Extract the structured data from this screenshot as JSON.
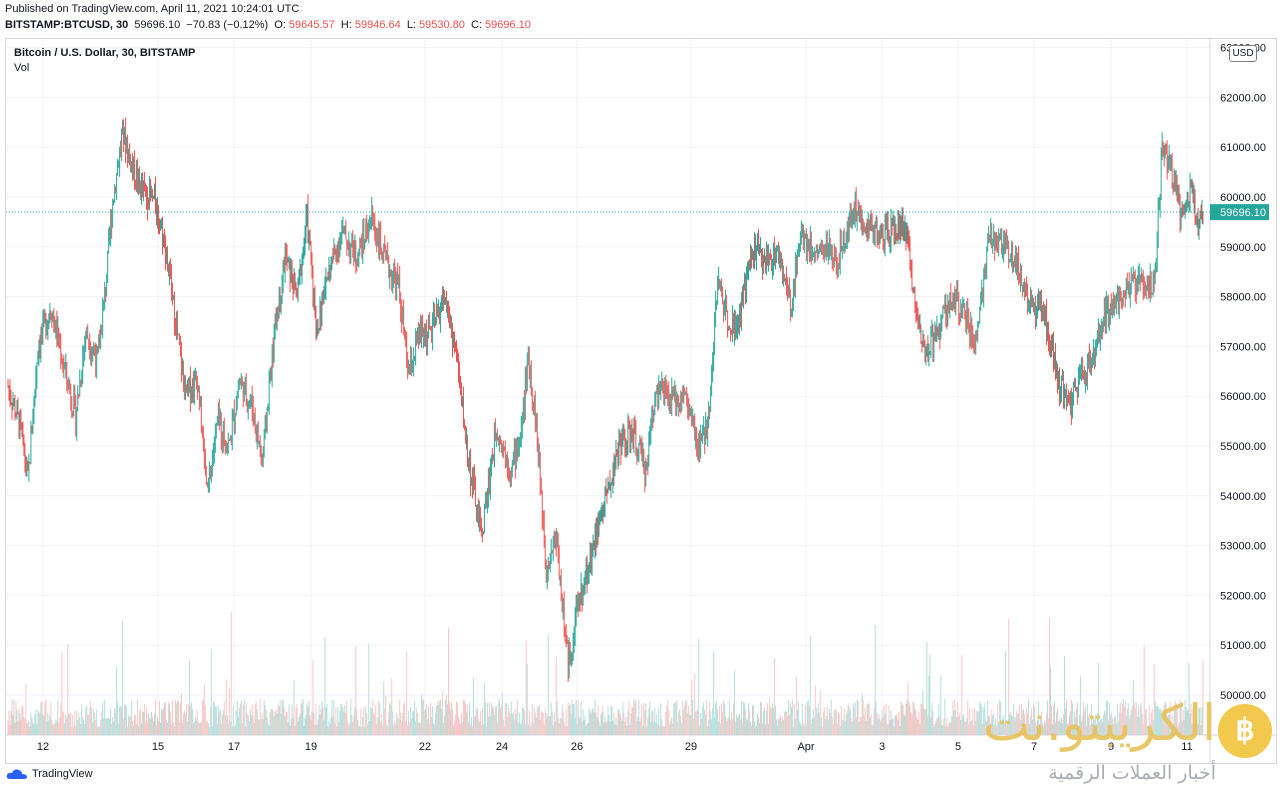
{
  "header": {
    "published": "Published on TradingView.com, April 11, 2021 10:24:01 UTC",
    "symbol": "BITSTAMP:BTCUSD, 30",
    "last": "59696.10",
    "change": "−70.83 (−0.12%)",
    "o_label": "O:",
    "o_value": "59645.57",
    "h_label": "H:",
    "h_value": "59946.64",
    "l_label": "L:",
    "l_value": "59530.80",
    "c_label": "C:",
    "c_value": "59696.10"
  },
  "legend": {
    "title": "Bitcoin / U.S. Dollar, 30, BITSTAMP",
    "vol": "Vol"
  },
  "currency_badge": "USD",
  "footer": {
    "brand": "TradingView"
  },
  "watermark": {
    "name": "الكريبتو.نت",
    "tagline": "أخبار العملات الرقمية",
    "coin": "฿"
  },
  "colors": {
    "up": "#26a69a",
    "down": "#ef5350",
    "grid": "#f0f3fa",
    "last_price_bg": "#26a69a"
  },
  "chart_data": {
    "type": "candlestick",
    "ylim": [
      50000,
      63000
    ],
    "y_ticks": [
      50000,
      51000,
      52000,
      53000,
      54000,
      55000,
      56000,
      57000,
      58000,
      59000,
      60000,
      61000,
      62000,
      63000
    ],
    "x_ticks": [
      "12",
      "15",
      "17",
      "19",
      "22",
      "24",
      "26",
      "29",
      "Apr",
      "3",
      "5",
      "7",
      "9",
      "11"
    ],
    "last_price": 59696.1,
    "last_price_label": "59696.10",
    "grid": true,
    "close_path": [
      [
        0,
        56200
      ],
      [
        12,
        55400
      ],
      [
        20,
        54300
      ],
      [
        30,
        57000
      ],
      [
        43,
        57800
      ],
      [
        55,
        56700
      ],
      [
        68,
        55600
      ],
      [
        78,
        57300
      ],
      [
        90,
        56700
      ],
      [
        98,
        58200
      ],
      [
        105,
        59900
      ],
      [
        115,
        61300
      ],
      [
        125,
        60600
      ],
      [
        135,
        60100
      ],
      [
        148,
        59900
      ],
      [
        158,
        59000
      ],
      [
        168,
        57500
      ],
      [
        178,
        56000
      ],
      [
        190,
        56400
      ],
      [
        200,
        54000
      ],
      [
        210,
        55500
      ],
      [
        222,
        55000
      ],
      [
        232,
        56300
      ],
      [
        245,
        55800
      ],
      [
        255,
        54700
      ],
      [
        268,
        57400
      ],
      [
        278,
        58800
      ],
      [
        290,
        58000
      ],
      [
        300,
        59600
      ],
      [
        310,
        57300
      ],
      [
        320,
        58400
      ],
      [
        335,
        59300
      ],
      [
        350,
        58800
      ],
      [
        365,
        59600
      ],
      [
        378,
        58700
      ],
      [
        392,
        58200
      ],
      [
        402,
        56400
      ],
      [
        412,
        57200
      ],
      [
        425,
        57300
      ],
      [
        438,
        58000
      ],
      [
        450,
        56800
      ],
      [
        462,
        54700
      ],
      [
        475,
        53200
      ],
      [
        490,
        55400
      ],
      [
        505,
        54500
      ],
      [
        515,
        55300
      ],
      [
        522,
        56800
      ],
      [
        530,
        55400
      ],
      [
        540,
        52600
      ],
      [
        550,
        53200
      ],
      [
        562,
        50600
      ],
      [
        572,
        51800
      ],
      [
        585,
        52800
      ],
      [
        600,
        54000
      ],
      [
        615,
        55100
      ],
      [
        628,
        55200
      ],
      [
        640,
        54500
      ],
      [
        650,
        56200
      ],
      [
        665,
        55900
      ],
      [
        680,
        56000
      ],
      [
        692,
        54900
      ],
      [
        702,
        55400
      ],
      [
        712,
        58300
      ],
      [
        722,
        57600
      ],
      [
        732,
        57400
      ],
      [
        748,
        59000
      ],
      [
        760,
        58700
      ],
      [
        772,
        58900
      ],
      [
        785,
        57800
      ],
      [
        795,
        59300
      ],
      [
        808,
        58900
      ],
      [
        820,
        59000
      ],
      [
        832,
        58700
      ],
      [
        848,
        59800
      ],
      [
        862,
        59500
      ],
      [
        875,
        59200
      ],
      [
        888,
        59300
      ],
      [
        900,
        59400
      ],
      [
        912,
        57600
      ],
      [
        922,
        56900
      ],
      [
        935,
        57400
      ],
      [
        948,
        58000
      ],
      [
        962,
        57500
      ],
      [
        972,
        57100
      ],
      [
        985,
        59200
      ],
      [
        1000,
        59000
      ],
      [
        1012,
        58700
      ],
      [
        1025,
        57800
      ],
      [
        1040,
        57700
      ],
      [
        1052,
        56400
      ],
      [
        1065,
        55800
      ],
      [
        1078,
        56500
      ],
      [
        1090,
        56800
      ],
      [
        1100,
        57600
      ],
      [
        1112,
        58000
      ],
      [
        1125,
        58100
      ],
      [
        1138,
        58400
      ],
      [
        1150,
        58200
      ],
      [
        1158,
        60900
      ],
      [
        1168,
        60500
      ],
      [
        1178,
        59600
      ],
      [
        1186,
        60200
      ],
      [
        1193,
        59600
      ],
      [
        1200,
        59696
      ]
    ]
  }
}
